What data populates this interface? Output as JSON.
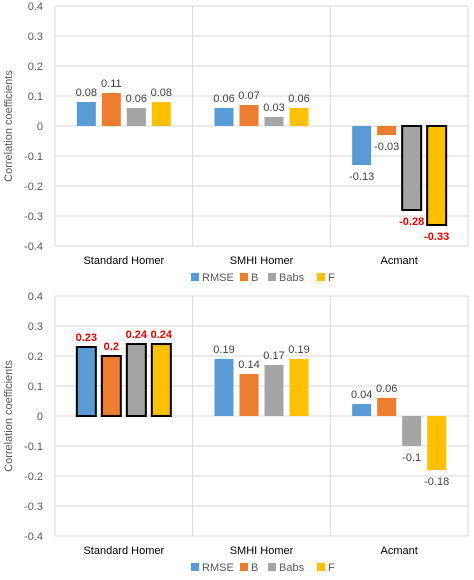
{
  "colors": {
    "RMSE": "#5b9bd5",
    "B": "#ed7d31",
    "Babs": "#a5a5a5",
    "F": "#ffc000",
    "highlight": "#e00000",
    "grid": "#d9d9d9"
  },
  "chart_data": [
    {
      "type": "bar",
      "ylabel": "Correlation coefficients",
      "ylim": [
        -0.4,
        0.4
      ],
      "yticks": [
        "-0.4",
        "-0.3",
        "-0.2",
        "-0.1",
        "0",
        "0.1",
        "0.2",
        "0.3",
        "0.4"
      ],
      "categories": [
        "Standard Homer",
        "SMHI Homer",
        "Acmant"
      ],
      "legend_position": "bottom",
      "series": [
        {
          "name": "RMSE",
          "values": [
            0.08,
            0.06,
            -0.13
          ],
          "labels": [
            "0.08",
            "0.06",
            "-0.13"
          ],
          "highlight": [
            false,
            false,
            false
          ]
        },
        {
          "name": "B",
          "values": [
            0.11,
            0.07,
            -0.03
          ],
          "labels": [
            "0.11",
            "0.07",
            "-0.03"
          ],
          "highlight": [
            false,
            false,
            false
          ]
        },
        {
          "name": "Babs",
          "values": [
            0.06,
            0.03,
            -0.28
          ],
          "labels": [
            "0.06",
            "0.03",
            "-0.28"
          ],
          "highlight": [
            false,
            false,
            true
          ]
        },
        {
          "name": "F",
          "values": [
            0.08,
            0.06,
            -0.33
          ],
          "labels": [
            "0.08",
            "0.06",
            "-0.33"
          ],
          "highlight": [
            false,
            false,
            true
          ]
        }
      ]
    },
    {
      "type": "bar",
      "ylabel": "Correlation coefficients",
      "ylim": [
        -0.4,
        0.4
      ],
      "yticks": [
        "-0.4",
        "-0.3",
        "-0.2",
        "-0.1",
        "0",
        "0.1",
        "0.2",
        "0.3",
        "0.4"
      ],
      "categories": [
        "Standard Homer",
        "SMHI Homer",
        "Acmant"
      ],
      "legend_position": "bottom",
      "series": [
        {
          "name": "RMSE",
          "values": [
            0.23,
            0.19,
            0.04
          ],
          "labels": [
            "0.23",
            "0.19",
            "0.04"
          ],
          "highlight": [
            true,
            false,
            false
          ]
        },
        {
          "name": "B",
          "values": [
            0.2,
            0.14,
            0.06
          ],
          "labels": [
            "0.2",
            "0.14",
            "0.06"
          ],
          "highlight": [
            true,
            false,
            false
          ]
        },
        {
          "name": "Babs",
          "values": [
            0.24,
            0.17,
            -0.1
          ],
          "labels": [
            "0.24",
            "0.17",
            "-0.1"
          ],
          "highlight": [
            true,
            false,
            false
          ]
        },
        {
          "name": "F",
          "values": [
            0.24,
            0.19,
            -0.18
          ],
          "labels": [
            "0.24",
            "0.19",
            "-0.18"
          ],
          "highlight": [
            true,
            false,
            false
          ]
        }
      ]
    }
  ]
}
